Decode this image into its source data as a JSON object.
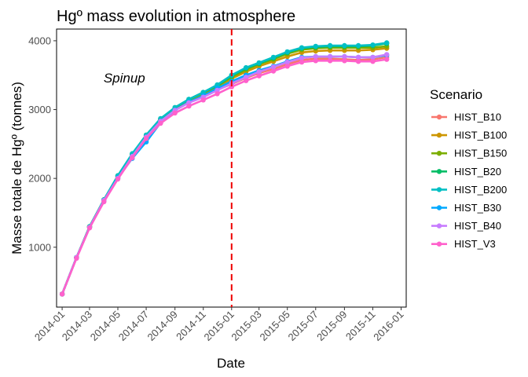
{
  "chart_data": {
    "type": "line",
    "title": "Hgº mass evolution in atmosphere",
    "xlabel": "Date",
    "ylabel": "Masse totale de Hgº (tonnes)",
    "x_ticks": [
      "2014-01",
      "2014-03",
      "2014-05",
      "2014-07",
      "2014-09",
      "2014-11",
      "2015-01",
      "2015-03",
      "2015-05",
      "2015-07",
      "2015-09",
      "2015-11",
      "2016-01"
    ],
    "y_ticks": [
      1000,
      2000,
      3000,
      4000
    ],
    "xlim": [
      "2013-12-20",
      "2016-01-12"
    ],
    "ylim": [
      130,
      4170
    ],
    "annotation": {
      "text": "Spinup",
      "x": "2014-05-15",
      "y": 3460
    },
    "vline": {
      "x": "2015-01-01",
      "color": "#ee0000",
      "style": "dashed"
    },
    "legend": {
      "title": "Scenario",
      "placement": "right"
    },
    "x": [
      "2014-01-01",
      "2014-02-01",
      "2014-03-01",
      "2014-04-01",
      "2014-05-01",
      "2014-06-01",
      "2014-07-01",
      "2014-08-01",
      "2014-09-01",
      "2014-10-01",
      "2014-11-01",
      "2014-12-01",
      "2015-01-01",
      "2015-02-01",
      "2015-03-01",
      "2015-04-01",
      "2015-05-01",
      "2015-06-01",
      "2015-07-01",
      "2015-08-01",
      "2015-09-01",
      "2015-10-01",
      "2015-11-01",
      "2015-12-01"
    ],
    "series": [
      {
        "name": "HIST_B10",
        "color": "#F8766D",
        "values": [
          320,
          850,
          1290,
          1680,
          2010,
          2330,
          2610,
          2840,
          2990,
          3110,
          3190,
          3290,
          3370,
          3460,
          3530,
          3590,
          3660,
          3720,
          3740,
          3740,
          3730,
          3720,
          3730,
          3760
        ]
      },
      {
        "name": "HIST_B100",
        "color": "#CD9600",
        "values": [
          320,
          850,
          1300,
          1690,
          2030,
          2350,
          2620,
          2860,
          3010,
          3130,
          3230,
          3320,
          3450,
          3550,
          3630,
          3700,
          3770,
          3830,
          3850,
          3860,
          3860,
          3860,
          3870,
          3890
        ]
      },
      {
        "name": "HIST_B150",
        "color": "#7CAE00",
        "values": [
          320,
          850,
          1300,
          1690,
          2040,
          2350,
          2630,
          2860,
          3020,
          3140,
          3240,
          3340,
          3470,
          3580,
          3660,
          3730,
          3810,
          3870,
          3890,
          3900,
          3900,
          3900,
          3900,
          3920
        ]
      },
      {
        "name": "HIST_B20",
        "color": "#00BE67",
        "values": [
          320,
          850,
          1290,
          1690,
          2030,
          2350,
          2620,
          2860,
          3030,
          3150,
          3250,
          3350,
          3490,
          3600,
          3670,
          3750,
          3830,
          3890,
          3910,
          3920,
          3920,
          3920,
          3930,
          3960
        ]
      },
      {
        "name": "HIST_B200",
        "color": "#00BFC4",
        "values": [
          320,
          850,
          1300,
          1690,
          2040,
          2360,
          2630,
          2870,
          3030,
          3150,
          3250,
          3360,
          3500,
          3610,
          3680,
          3760,
          3840,
          3900,
          3920,
          3930,
          3930,
          3930,
          3940,
          3970
        ]
      },
      {
        "name": "HIST_B30",
        "color": "#00A9FF",
        "values": [
          320,
          850,
          1290,
          1680,
          2010,
          2290,
          2530,
          2810,
          2990,
          3110,
          3200,
          3310,
          3410,
          3500,
          3570,
          3630,
          3700,
          3760,
          3770,
          3770,
          3770,
          3760,
          3760,
          3790
        ]
      },
      {
        "name": "HIST_B40",
        "color": "#C77CFF",
        "values": [
          320,
          850,
          1290,
          1680,
          2000,
          2320,
          2600,
          2830,
          2990,
          3100,
          3180,
          3280,
          3380,
          3470,
          3550,
          3620,
          3690,
          3750,
          3770,
          3770,
          3770,
          3760,
          3760,
          3800
        ]
      },
      {
        "name": "HIST_V3",
        "color": "#FF61CC",
        "values": [
          320,
          840,
          1280,
          1660,
          1990,
          2300,
          2580,
          2800,
          2950,
          3050,
          3140,
          3230,
          3330,
          3420,
          3490,
          3560,
          3630,
          3690,
          3710,
          3710,
          3710,
          3700,
          3700,
          3730
        ]
      }
    ]
  }
}
